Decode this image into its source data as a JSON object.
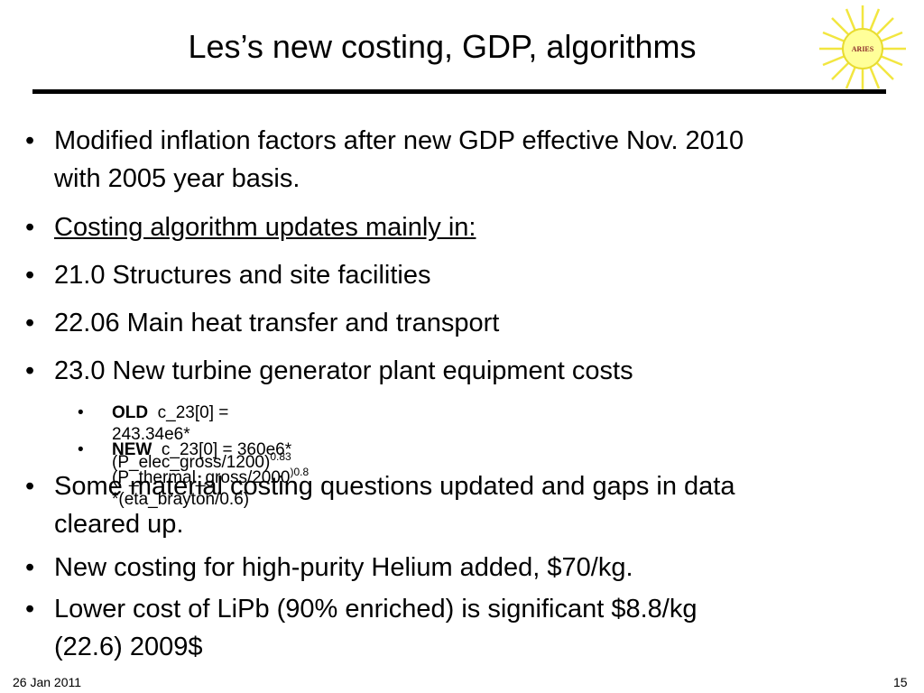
{
  "slide": {
    "title": "Les’s new costing, GDP, algorithms",
    "logo_text": "ARIES",
    "bullets": [
      {
        "line1": "Modified inflation factors after new GDP effective Nov. 2010",
        "line2": "with 2005 year basis."
      },
      {
        "line1": "Costing algorithm updates mainly in:"
      },
      {
        "line1": "21.0 Structures and site facilities"
      },
      {
        "line1": "22.06 Main heat transfer and transport"
      },
      {
        "line1": "23.0 New turbine generator plant equipment costs"
      }
    ],
    "sub_bullets": [
      {
        "label": "OLD",
        "formula": "c_23[0] = 243.34e6*(P_elec_gross/1200)",
        "exp": "0.83",
        "tail": ""
      },
      {
        "label": "NEW",
        "formula": "c_23[0] = 360e6*(P_thermal_gross/2000",
        "exp": ")0.8",
        "tail": " *(eta_brayton/0.6)"
      }
    ],
    "bullets2": [
      {
        "line1": "Some material costing questions updated and gaps in data",
        "line2": "cleared up."
      },
      {
        "line1": "New costing for high-purity Helium added, $70/kg."
      },
      {
        "line1": "Lower cost of LiPb (90% enriched) is significant $8.8/kg",
        "line2": "(22.6) 2009$"
      }
    ]
  },
  "footer": {
    "date": "26 Jan 2011",
    "page": "15"
  },
  "colors": {
    "logo_rays": "#f2e640",
    "logo_fill": "#ffff99",
    "logo_text": "#8b2a2a"
  }
}
